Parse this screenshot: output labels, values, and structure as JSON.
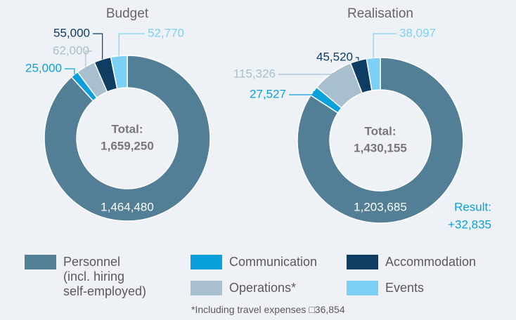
{
  "chart_data": [
    {
      "type": "pie",
      "title": "Budget",
      "values": [
        1464480,
        25000,
        62000,
        55000,
        52770
      ],
      "value_labels": [
        "1,464,480",
        "25,000",
        "62,000",
        "55,000",
        "52,770"
      ],
      "total_label": "Total:",
      "total": "1,659,250"
    },
    {
      "type": "pie",
      "title": "Realisation",
      "values": [
        1203685,
        27527,
        115326,
        45520,
        38097
      ],
      "value_labels": [
        "1,203,685",
        "27,527",
        "115,326",
        "45,520",
        "38,097"
      ],
      "total_label": "Total:",
      "total": "1,430,155",
      "result_label": "Result:",
      "result": "+32,835"
    }
  ],
  "legend": {
    "names": [
      "Personnel\n(incl. hiring\nself-employed)",
      "Communication",
      "Operations*",
      "Accommodation",
      "Events"
    ],
    "colors": [
      "#527f96",
      "#0aa0dc",
      "#a7bfcf",
      "#0d3d63",
      "#7dd0f5"
    ]
  },
  "footnote": "*Including travel expenses □36,854"
}
